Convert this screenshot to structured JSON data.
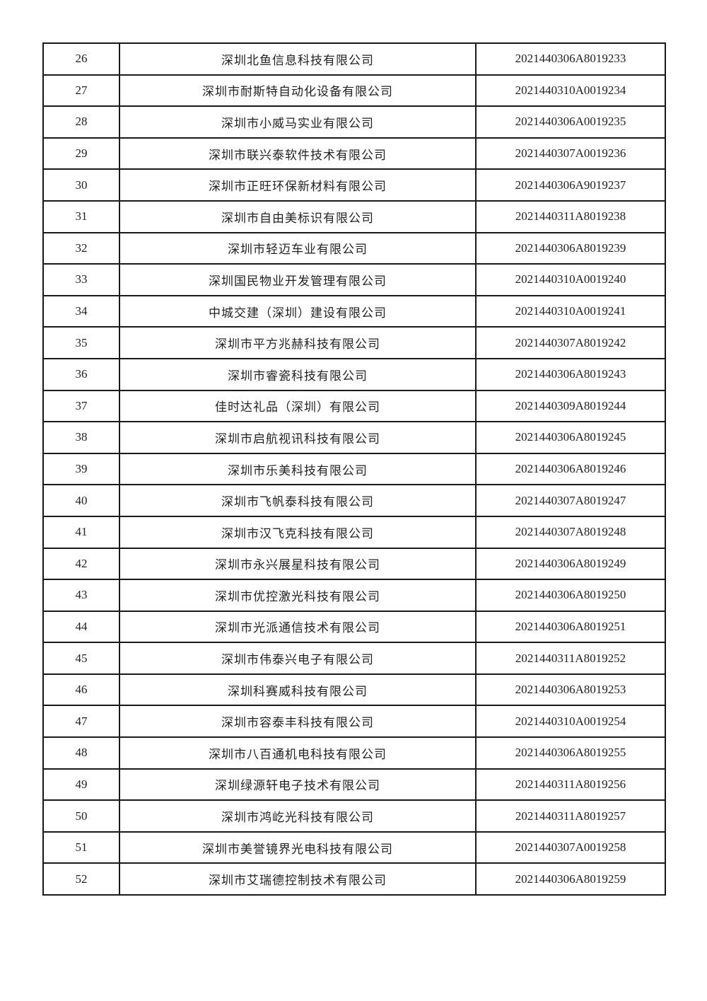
{
  "table": {
    "rows": [
      {
        "no": "26",
        "company": "深圳北鱼信息科技有限公司",
        "code": "2021440306A8019233"
      },
      {
        "no": "27",
        "company": "深圳市耐斯特自动化设备有限公司",
        "code": "2021440310A0019234"
      },
      {
        "no": "28",
        "company": "深圳市小威马实业有限公司",
        "code": "2021440306A0019235"
      },
      {
        "no": "29",
        "company": "深圳市联兴泰软件技术有限公司",
        "code": "2021440307A0019236"
      },
      {
        "no": "30",
        "company": "深圳市正旺环保新材料有限公司",
        "code": "2021440306A9019237"
      },
      {
        "no": "31",
        "company": "深圳市自由美标识有限公司",
        "code": "2021440311A8019238"
      },
      {
        "no": "32",
        "company": "深圳市轻迈车业有限公司",
        "code": "2021440306A8019239"
      },
      {
        "no": "33",
        "company": "深圳国民物业开发管理有限公司",
        "code": "2021440310A0019240"
      },
      {
        "no": "34",
        "company": "中城交建（深圳）建设有限公司",
        "code": "2021440310A0019241"
      },
      {
        "no": "35",
        "company": "深圳市平方兆赫科技有限公司",
        "code": "2021440307A8019242"
      },
      {
        "no": "36",
        "company": "深圳市睿瓷科技有限公司",
        "code": "2021440306A8019243"
      },
      {
        "no": "37",
        "company": "佳时达礼品（深圳）有限公司",
        "code": "2021440309A8019244"
      },
      {
        "no": "38",
        "company": "深圳市启航视讯科技有限公司",
        "code": "2021440306A8019245"
      },
      {
        "no": "39",
        "company": "深圳市乐美科技有限公司",
        "code": "2021440306A8019246"
      },
      {
        "no": "40",
        "company": "深圳市飞帆泰科技有限公司",
        "code": "2021440307A8019247"
      },
      {
        "no": "41",
        "company": "深圳市汉飞克科技有限公司",
        "code": "2021440307A8019248"
      },
      {
        "no": "42",
        "company": "深圳市永兴展星科技有限公司",
        "code": "2021440306A8019249"
      },
      {
        "no": "43",
        "company": "深圳市优控激光科技有限公司",
        "code": "2021440306A8019250"
      },
      {
        "no": "44",
        "company": "深圳市光派通信技术有限公司",
        "code": "2021440306A8019251"
      },
      {
        "no": "45",
        "company": "深圳市伟泰兴电子有限公司",
        "code": "2021440311A8019252"
      },
      {
        "no": "46",
        "company": "深圳科赛威科技有限公司",
        "code": "2021440306A8019253"
      },
      {
        "no": "47",
        "company": "深圳市容泰丰科技有限公司",
        "code": "2021440310A0019254"
      },
      {
        "no": "48",
        "company": "深圳市八百通机电科技有限公司",
        "code": "2021440306A8019255"
      },
      {
        "no": "49",
        "company": "深圳绿源轩电子技术有限公司",
        "code": "2021440311A8019256"
      },
      {
        "no": "50",
        "company": "深圳市鸿屹光科技有限公司",
        "code": "2021440311A8019257"
      },
      {
        "no": "51",
        "company": "深圳市美誉镜界光电科技有限公司",
        "code": "2021440307A0019258"
      },
      {
        "no": "52",
        "company": "深圳市艾瑞德控制技术有限公司",
        "code": "2021440306A8019259"
      }
    ]
  }
}
